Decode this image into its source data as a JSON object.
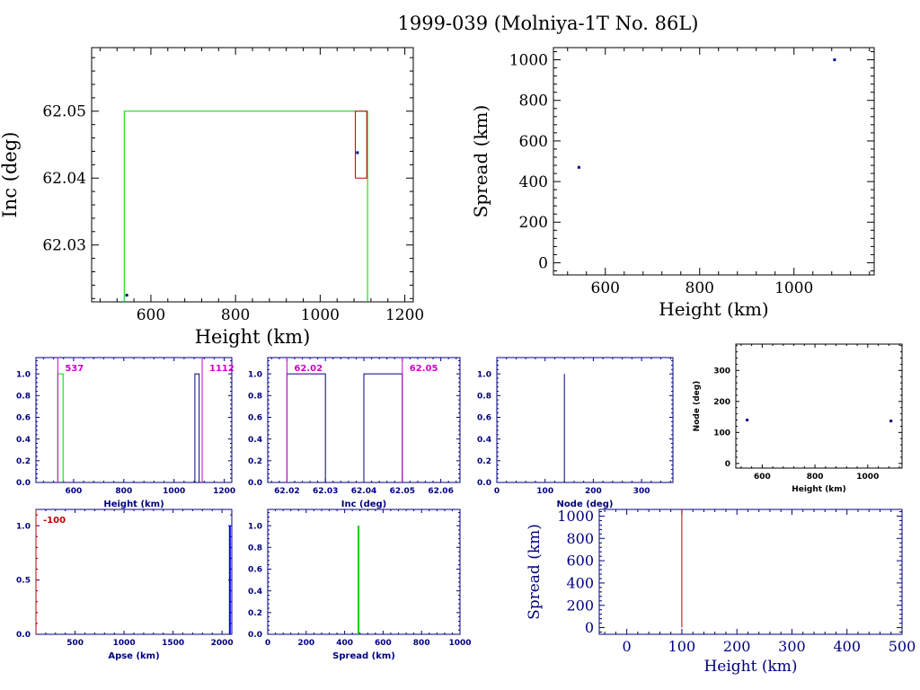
{
  "title": "1999-039 (Molniya-1T No. 86L)",
  "colors": {
    "frame": "#000000",
    "navy": "#000080",
    "green": "#00d000",
    "red": "#c00000",
    "magenta": "#d000d0",
    "blue": "#0000ff"
  },
  "chart_data": [
    {
      "id": "inc_height",
      "type": "scatter",
      "xlabel": "Height (km)",
      "ylabel": "Inc (deg)",
      "xlim": [
        460,
        1220
      ],
      "ylim": [
        62.0215,
        62.0595
      ],
      "xticks": [
        600,
        800,
        1000,
        1200
      ],
      "yticks": [
        62.03,
        62.04,
        62.05
      ],
      "points": [
        {
          "x": 543,
          "y": 62.0225
        },
        {
          "x": 1088,
          "y": 62.0438
        }
      ],
      "boxes": [
        {
          "x0": 537,
          "x1": 1112,
          "y0": 62.0215,
          "y1": 62.05,
          "color": "green"
        },
        {
          "x0": 1083,
          "x1": 1110,
          "y0": 62.04,
          "y1": 62.05,
          "color": "red"
        }
      ]
    },
    {
      "id": "spread_height",
      "type": "scatter",
      "xlabel": "Height (km)",
      "ylabel": "Spread (km)",
      "xlim": [
        490,
        1170
      ],
      "ylim": [
        -60,
        1060
      ],
      "xticks": [
        600,
        800,
        1000
      ],
      "yticks": [
        0,
        200,
        400,
        600,
        800,
        1000
      ],
      "points": [
        {
          "x": 544,
          "y": 470
        },
        {
          "x": 1086,
          "y": 1000
        }
      ]
    },
    {
      "id": "height_hist",
      "type": "bar",
      "xlabel": "Height (km)",
      "ylabel": "",
      "xlim": [
        450,
        1230
      ],
      "ylim": [
        0,
        1.15
      ],
      "xticks": [
        600,
        800,
        1000,
        1200
      ],
      "yticks": [
        0,
        0.2,
        0.4,
        0.6,
        0.8,
        1
      ],
      "steps": [
        {
          "x0": 537,
          "x1": 558,
          "y": 1,
          "color": "green"
        },
        {
          "x0": 1083,
          "x1": 1100,
          "y": 1,
          "color": "navy"
        }
      ],
      "markers": [
        {
          "x": 537,
          "label": "537"
        },
        {
          "x": 1112,
          "label": "1112"
        }
      ]
    },
    {
      "id": "inc_hist",
      "type": "bar",
      "xlabel": "Inc (deg)",
      "ylabel": "",
      "xlim": [
        62.015,
        62.065
      ],
      "ylim": [
        0,
        1.15
      ],
      "xticks": [
        62.02,
        62.03,
        62.04,
        62.05,
        62.06
      ],
      "yticks": [
        0,
        0.2,
        0.4,
        0.6,
        0.8,
        1
      ],
      "steps": [
        {
          "x0": 62.02,
          "x1": 62.03,
          "y": 1,
          "color": "navy"
        },
        {
          "x0": 62.04,
          "x1": 62.05,
          "y": 1,
          "color": "navy"
        }
      ],
      "markers": [
        {
          "x": 62.02,
          "label": "62.02"
        },
        {
          "x": 62.05,
          "label": "62.05"
        }
      ]
    },
    {
      "id": "node_hist",
      "type": "bar",
      "xlabel": "Node (deg)",
      "ylabel": "",
      "xlim": [
        0,
        365
      ],
      "ylim": [
        0,
        1.15
      ],
      "xticks": [
        0,
        100,
        200,
        300
      ],
      "yticks": [
        0,
        0.2,
        0.4,
        0.6,
        0.8,
        1
      ],
      "lines": [
        {
          "x": 140,
          "y": 1,
          "color": "navy"
        }
      ]
    },
    {
      "id": "node_height",
      "type": "scatter",
      "xlabel": "Height (km)",
      "ylabel": "Node (deg)",
      "xlim": [
        500,
        1130
      ],
      "ylim": [
        -15,
        385
      ],
      "xticks": [
        600,
        800,
        1000
      ],
      "yticks": [
        0,
        100,
        200,
        300
      ],
      "points": [
        {
          "x": 543,
          "y": 140
        },
        {
          "x": 1088,
          "y": 137
        }
      ]
    },
    {
      "id": "apse_hist",
      "type": "bar",
      "xlabel": "Apse (km)",
      "ylabel": "",
      "xlim": [
        100,
        2100
      ],
      "ylim": [
        0,
        1.15
      ],
      "xticks": [
        500,
        1000,
        1500,
        2000
      ],
      "yticks": [
        0,
        0.5,
        1
      ],
      "lines": [
        {
          "x": 2080,
          "y": 1,
          "color": "blue"
        }
      ],
      "markers": [
        {
          "x": 100,
          "label": "-100"
        }
      ]
    },
    {
      "id": "spread_hist",
      "type": "bar",
      "xlabel": "Spread (km)",
      "ylabel": "",
      "xlim": [
        0,
        1000
      ],
      "ylim": [
        0,
        1.15
      ],
      "xticks": [
        0,
        200,
        400,
        600,
        800,
        1000
      ],
      "yticks": [
        0,
        0.2,
        0.4,
        0.6,
        0.8,
        1
      ],
      "lines": [
        {
          "x": 472,
          "y": 1,
          "color": "green"
        }
      ]
    },
    {
      "id": "spread_height_zoom",
      "type": "line",
      "xlabel": "Height (km)",
      "ylabel": "Spread (km)",
      "xlim": [
        -50,
        500
      ],
      "ylim": [
        -60,
        1060
      ],
      "xticks": [
        0,
        100,
        200,
        300,
        400,
        500
      ],
      "yticks": [
        0,
        200,
        400,
        600,
        800,
        1000
      ],
      "lines": [
        {
          "x": 100,
          "y": 1060,
          "color": "red"
        }
      ]
    }
  ]
}
